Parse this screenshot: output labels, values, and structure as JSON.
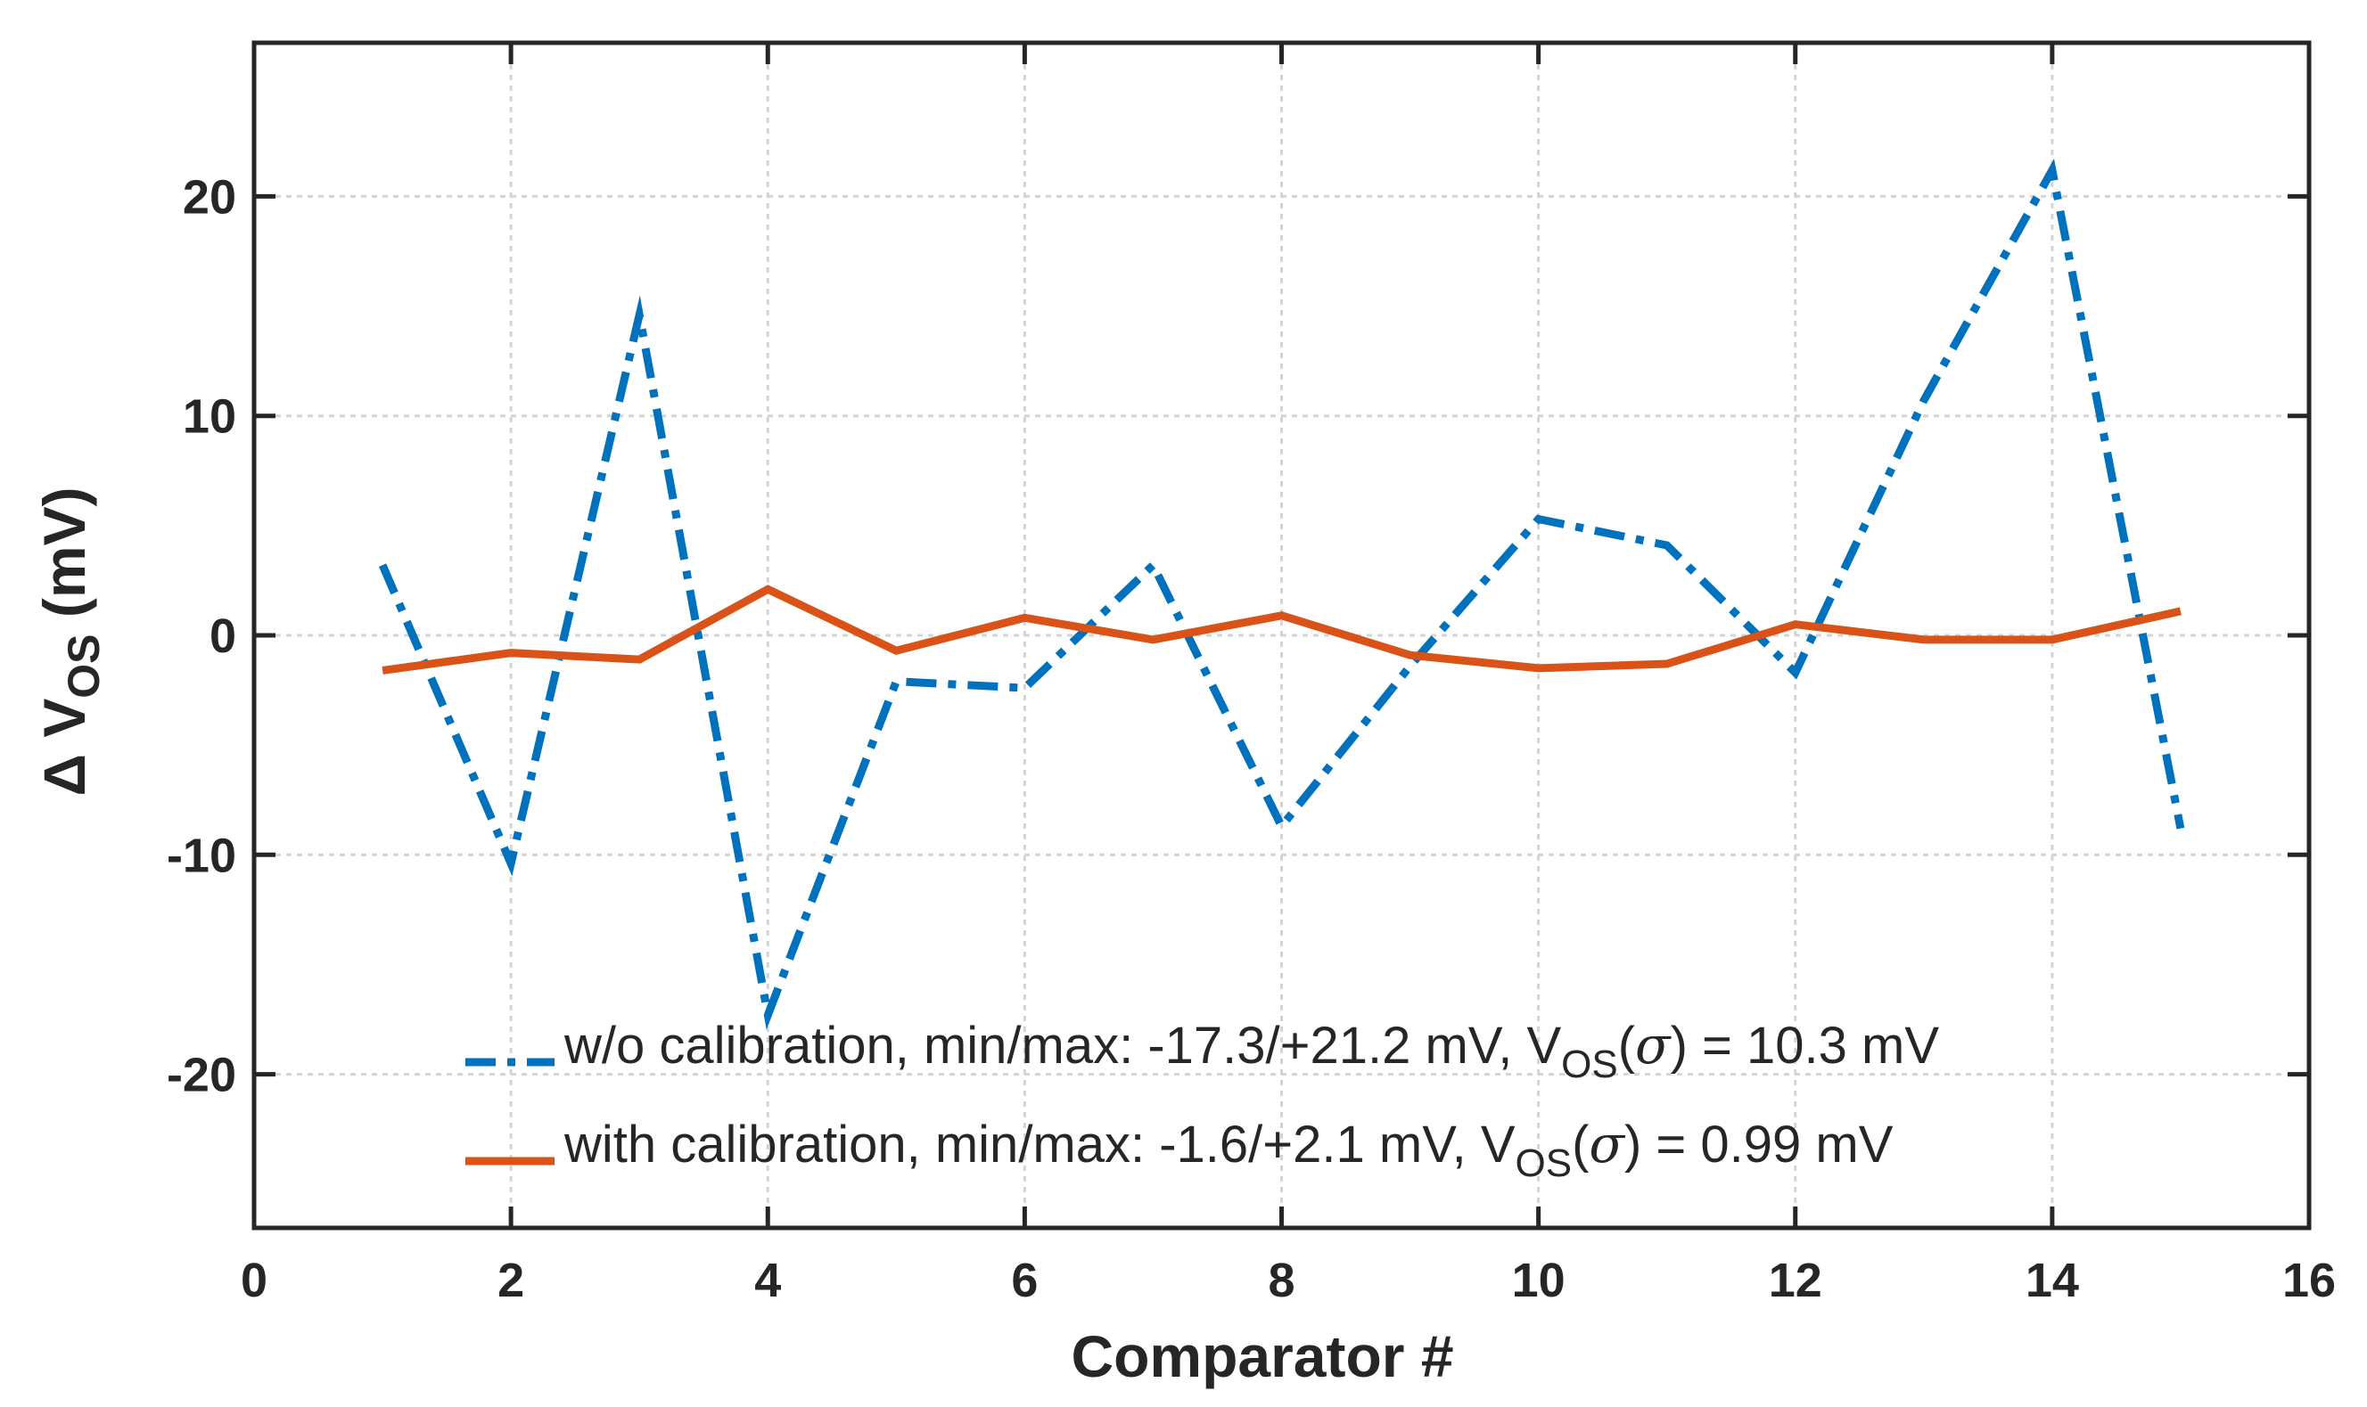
{
  "chart_data": {
    "type": "line",
    "xlabel": "Comparator #",
    "ylabel": {
      "prefix": "Δ V",
      "subscript": "OS",
      "suffix": " (mV)"
    },
    "xlim": [
      0,
      16
    ],
    "ylim": [
      -27,
      27
    ],
    "xticks": [
      0,
      2,
      4,
      6,
      8,
      10,
      12,
      14,
      16
    ],
    "yticks": [
      -20,
      -10,
      0,
      10,
      20
    ],
    "grid": true,
    "legend_position": "bottom-right",
    "x": [
      1,
      2,
      3,
      4,
      5,
      6,
      7,
      8,
      9,
      10,
      11,
      12,
      13,
      14,
      15
    ],
    "series": [
      {
        "name": "w/o calibration, min/max: -17.3/+21.2 mV, V_OS(σ) = 10.3 mV",
        "legend_parts": {
          "text": "w/o calibration, min/max: -17.3/+21.2 mV, ",
          "v": "V",
          "sub": "OS",
          "lparen": "(",
          "sigma": "σ",
          "rest": ") = 10.3 mV"
        },
        "color": "#0072BD",
        "line_style": "dash-dot",
        "values": [
          3.2,
          -10.4,
          14.6,
          -17.3,
          -2.1,
          -2.4,
          3.2,
          -8.7,
          -1.4,
          5.3,
          4.1,
          -1.7,
          10.7,
          21.2,
          -8.8
        ]
      },
      {
        "name": "with calibration, min/max: -1.6/+2.1 mV, V_OS(σ) = 0.99 mV",
        "legend_parts": {
          "text": "with calibration, min/max: -1.6/+2.1 mV, ",
          "v": "V",
          "sub": "OS",
          "lparen": "(",
          "sigma": "σ",
          "rest": ") = 0.99 mV"
        },
        "color": "#D95319",
        "line_style": "solid",
        "values": [
          -1.6,
          -0.8,
          -1.1,
          2.1,
          -0.7,
          0.8,
          -0.2,
          0.9,
          -0.9,
          -1.5,
          -1.3,
          0.5,
          -0.2,
          -0.2,
          1.1
        ]
      }
    ]
  }
}
